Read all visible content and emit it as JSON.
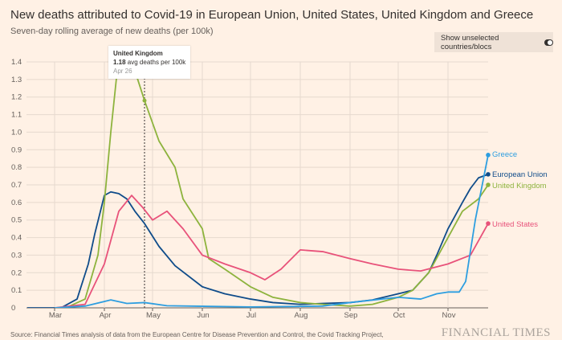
{
  "header": {
    "title": "New deaths attributed to Covid-19 in European Union, United States, United Kingdom and Greece",
    "subtitle": "Seven-day rolling average of new deaths (per 100k)"
  },
  "toggle": {
    "label": "Show unselected countries/blocs",
    "state": "off"
  },
  "tooltip": {
    "country": "United Kingdom",
    "value": "1.18",
    "unit": " avg deaths per 100k",
    "date": "Apr 26"
  },
  "footer": {
    "source": "Source: Financial Times analysis of data from the European Centre for Disease Prevention and Control, the Covid Tracking Project,",
    "brand": "FINANCIAL TIMES"
  },
  "chart_data": {
    "type": "line",
    "title": "New deaths attributed to Covid-19 in European Union, United States, United Kingdom and Greece",
    "ylabel": "Seven-day rolling average of new deaths (per 100k)",
    "ylim": [
      0,
      1.4
    ],
    "yticks": [
      "0",
      "0.1",
      "0.2",
      "0.3",
      "0.4",
      "0.5",
      "0.6",
      "0.7",
      "0.8",
      "0.9",
      "1.0",
      "1.1",
      "1.2",
      "1.3",
      "1.4"
    ],
    "xticks": [
      "Mar",
      "Apr",
      "May",
      "Jun",
      "Jul",
      "Aug",
      "Sep",
      "Oct",
      "Nov"
    ],
    "grid": true,
    "series": [
      {
        "name": "European Union",
        "color": "#0f4c8a",
        "points": [
          [
            "2020-02-13",
            0
          ],
          [
            "2020-03-05",
            0
          ],
          [
            "2020-03-15",
            0.05
          ],
          [
            "2020-03-22",
            0.25
          ],
          [
            "2020-03-26",
            0.42
          ],
          [
            "2020-04-01",
            0.64
          ],
          [
            "2020-04-05",
            0.66
          ],
          [
            "2020-04-10",
            0.65
          ],
          [
            "2020-04-15",
            0.62
          ],
          [
            "2020-04-20",
            0.55
          ],
          [
            "2020-04-26",
            0.48
          ],
          [
            "2020-05-05",
            0.35
          ],
          [
            "2020-05-15",
            0.24
          ],
          [
            "2020-06-01",
            0.12
          ],
          [
            "2020-06-15",
            0.08
          ],
          [
            "2020-07-01",
            0.05
          ],
          [
            "2020-07-15",
            0.03
          ],
          [
            "2020-08-01",
            0.02
          ],
          [
            "2020-08-15",
            0.025
          ],
          [
            "2020-09-01",
            0.03
          ],
          [
            "2020-09-15",
            0.045
          ],
          [
            "2020-10-01",
            0.08
          ],
          [
            "2020-10-10",
            0.1
          ],
          [
            "2020-10-20",
            0.2
          ],
          [
            "2020-10-25",
            0.3
          ],
          [
            "2020-11-01",
            0.45
          ],
          [
            "2020-11-10",
            0.6
          ],
          [
            "2020-11-15",
            0.68
          ],
          [
            "2020-11-20",
            0.74
          ],
          [
            "2020-11-26",
            0.76
          ]
        ]
      },
      {
        "name": "United Kingdom",
        "color": "#8db33d",
        "points": [
          [
            "2020-03-08",
            0
          ],
          [
            "2020-03-20",
            0.05
          ],
          [
            "2020-03-28",
            0.3
          ],
          [
            "2020-04-01",
            0.6
          ],
          [
            "2020-04-05",
            1.0
          ],
          [
            "2020-04-09",
            1.35
          ],
          [
            "2020-04-13",
            1.45
          ],
          [
            "2020-04-20",
            1.35
          ],
          [
            "2020-04-26",
            1.18
          ],
          [
            "2020-05-05",
            0.95
          ],
          [
            "2020-05-15",
            0.8
          ],
          [
            "2020-05-20",
            0.62
          ],
          [
            "2020-06-01",
            0.45
          ],
          [
            "2020-06-05",
            0.28
          ],
          [
            "2020-06-15",
            0.22
          ],
          [
            "2020-07-01",
            0.12
          ],
          [
            "2020-07-15",
            0.06
          ],
          [
            "2020-08-01",
            0.03
          ],
          [
            "2020-08-15",
            0.02
          ],
          [
            "2020-09-01",
            0.01
          ],
          [
            "2020-09-15",
            0.02
          ],
          [
            "2020-10-01",
            0.06
          ],
          [
            "2020-10-10",
            0.1
          ],
          [
            "2020-10-20",
            0.2
          ],
          [
            "2020-11-01",
            0.4
          ],
          [
            "2020-11-10",
            0.55
          ],
          [
            "2020-11-20",
            0.62
          ],
          [
            "2020-11-26",
            0.7
          ]
        ]
      },
      {
        "name": "United States",
        "color": "#e8527a",
        "points": [
          [
            "2020-03-01",
            0
          ],
          [
            "2020-03-20",
            0.02
          ],
          [
            "2020-04-01",
            0.25
          ],
          [
            "2020-04-10",
            0.55
          ],
          [
            "2020-04-18",
            0.64
          ],
          [
            "2020-04-25",
            0.57
          ],
          [
            "2020-05-01",
            0.5
          ],
          [
            "2020-05-10",
            0.55
          ],
          [
            "2020-05-20",
            0.45
          ],
          [
            "2020-06-01",
            0.3
          ],
          [
            "2020-06-15",
            0.25
          ],
          [
            "2020-07-01",
            0.2
          ],
          [
            "2020-07-10",
            0.16
          ],
          [
            "2020-07-20",
            0.22
          ],
          [
            "2020-08-01",
            0.33
          ],
          [
            "2020-08-15",
            0.32
          ],
          [
            "2020-09-01",
            0.28
          ],
          [
            "2020-09-15",
            0.25
          ],
          [
            "2020-10-01",
            0.22
          ],
          [
            "2020-10-15",
            0.21
          ],
          [
            "2020-11-01",
            0.25
          ],
          [
            "2020-11-15",
            0.3
          ],
          [
            "2020-11-26",
            0.48
          ]
        ]
      },
      {
        "name": "Greece",
        "color": "#2d9ee0",
        "points": [
          [
            "2020-03-01",
            0
          ],
          [
            "2020-03-20",
            0.01
          ],
          [
            "2020-04-05",
            0.045
          ],
          [
            "2020-04-15",
            0.025
          ],
          [
            "2020-04-26",
            0.03
          ],
          [
            "2020-05-10",
            0.012
          ],
          [
            "2020-07-01",
            0.005
          ],
          [
            "2020-08-15",
            0.01
          ],
          [
            "2020-09-01",
            0.03
          ],
          [
            "2020-10-01",
            0.06
          ],
          [
            "2020-10-15",
            0.05
          ],
          [
            "2020-10-25",
            0.08
          ],
          [
            "2020-11-01",
            0.09
          ],
          [
            "2020-11-08",
            0.09
          ],
          [
            "2020-11-12",
            0.15
          ],
          [
            "2020-11-18",
            0.5
          ],
          [
            "2020-11-26",
            0.87
          ]
        ]
      }
    ]
  }
}
